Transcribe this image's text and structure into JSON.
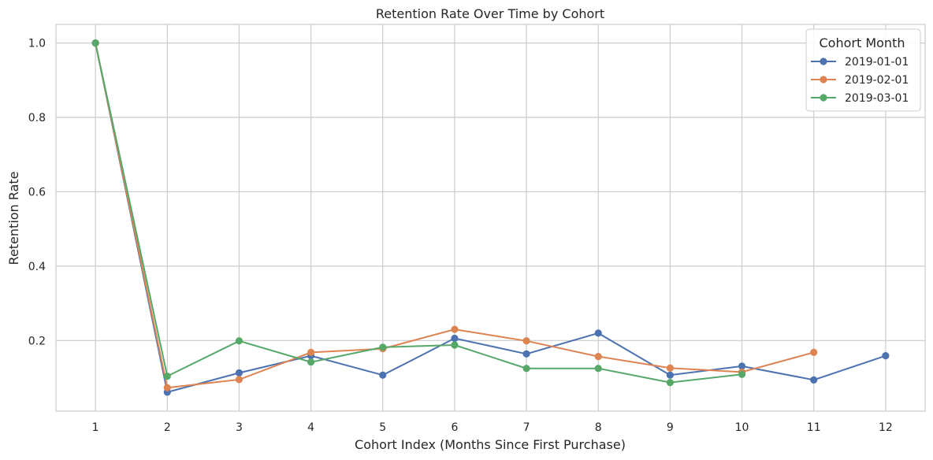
{
  "chart_data": {
    "type": "line",
    "title": "Retention Rate Over Time by Cohort",
    "xlabel": "Cohort Index (Months Since First Purchase)",
    "ylabel": "Retention Rate",
    "x": [
      1,
      2,
      3,
      4,
      5,
      6,
      7,
      8,
      9,
      10,
      11,
      12
    ],
    "xticks": [
      "1",
      "2",
      "3",
      "4",
      "5",
      "6",
      "7",
      "8",
      "9",
      "10",
      "11",
      "12"
    ],
    "yticks": [
      "0.2",
      "0.4",
      "0.6",
      "0.8",
      "1.0"
    ],
    "xlim": [
      0.45,
      12.55
    ],
    "ylim": [
      0.01,
      1.05
    ],
    "grid": true,
    "legend": {
      "title": "Cohort Month",
      "placement": "top-right"
    },
    "series": [
      {
        "name": "2019-01-01",
        "color": "#4c72b0",
        "values": [
          1.0,
          0.061,
          0.113,
          0.159,
          0.107,
          0.206,
          0.164,
          0.22,
          0.107,
          0.131,
          0.094,
          0.159
        ]
      },
      {
        "name": "2019-02-01",
        "color": "#dd8452",
        "values": [
          1.0,
          0.073,
          0.095,
          0.168,
          0.178,
          0.23,
          0.199,
          0.157,
          0.126,
          0.115,
          0.168,
          null
        ]
      },
      {
        "name": "2019-03-01",
        "color": "#55a868",
        "values": [
          1.0,
          0.104,
          0.199,
          0.142,
          0.182,
          0.188,
          0.125,
          0.125,
          0.087,
          0.109,
          null,
          null
        ]
      }
    ]
  }
}
